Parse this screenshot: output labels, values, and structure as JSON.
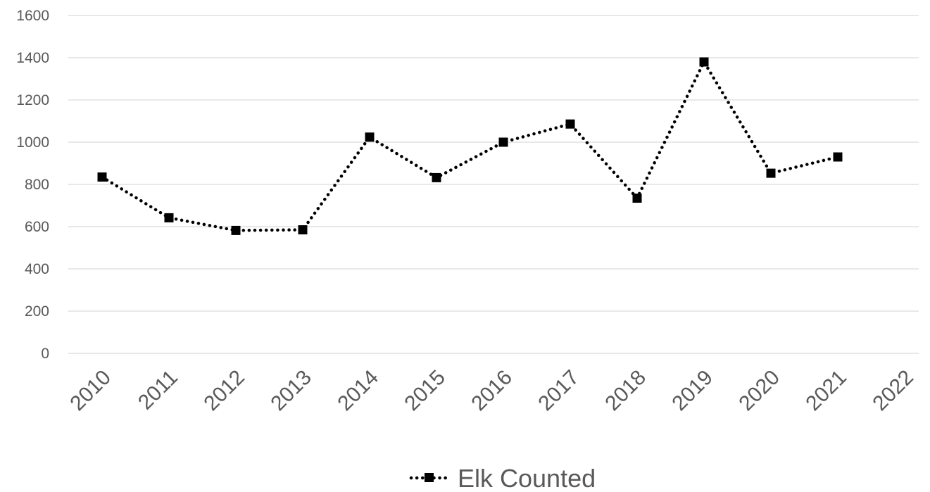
{
  "chart_data": {
    "type": "line",
    "x": [
      "2010",
      "2011",
      "2012",
      "2013",
      "2014",
      "2015",
      "2016",
      "2017",
      "2018",
      "2019",
      "2020",
      "2021",
      "2022"
    ],
    "series": [
      {
        "name": "Elk Counted",
        "values": [
          835,
          642,
          582,
          585,
          1024,
          832,
          1000,
          1086,
          735,
          1380,
          853,
          930,
          null
        ],
        "color": "#000000",
        "line_style": "dotted",
        "marker": "square"
      }
    ],
    "yticks": [
      "0",
      "200",
      "400",
      "600",
      "800",
      "1000",
      "1200",
      "1400",
      "1600"
    ],
    "ylim": [
      0,
      1600
    ],
    "grid": true,
    "legend_position": "bottom"
  }
}
